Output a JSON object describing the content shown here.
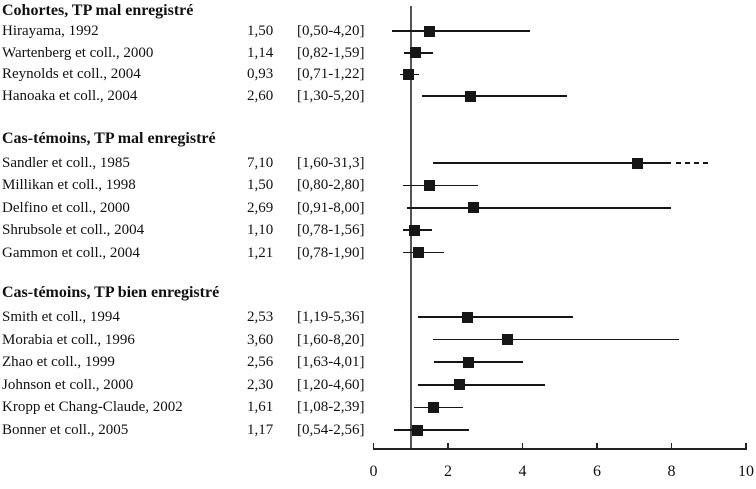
{
  "chart_data": {
    "type": "forest",
    "title": "",
    "x_axis": {
      "min": 0,
      "max": 10,
      "ticks": [
        0,
        2,
        4,
        6,
        8,
        10
      ],
      "tick_labels": [
        "0",
        "2",
        "4",
        "6",
        "8",
        "10"
      ],
      "reference_line_value": 1
    },
    "colors": {
      "marker": "#161616",
      "ci_line": "#161616",
      "reference_line": "#555555",
      "text": "#111111"
    },
    "groups": [
      {
        "label": "Cohortes, TP mal enregistré",
        "studies": [
          {
            "label": "Hirayama, 1992",
            "estimate_text": "1,50",
            "ci_text": "[0,50-4,20]",
            "estimate": 1.5,
            "ci_low": 0.5,
            "ci_high": 4.2
          },
          {
            "label": "Wartenberg et coll., 2000",
            "estimate_text": "1,14",
            "ci_text": "[0,82-1,59]",
            "estimate": 1.14,
            "ci_low": 0.82,
            "ci_high": 1.59
          },
          {
            "label": "Reynolds et coll., 2004",
            "estimate_text": "0,93",
            "ci_text": "[0,71-1,22]",
            "estimate": 0.93,
            "ci_low": 0.71,
            "ci_high": 1.22
          },
          {
            "label": "Hanoaka et coll., 2004",
            "estimate_text": "2,60",
            "ci_text": "[1,30-5,20]",
            "estimate": 2.6,
            "ci_low": 1.3,
            "ci_high": 5.2
          }
        ]
      },
      {
        "label": "Cas-témoins, TP mal enregistré",
        "studies": [
          {
            "label": "Sandler et coll., 1985",
            "estimate_text": "7,10",
            "ci_text": "[1,60-31,3]",
            "estimate": 7.1,
            "ci_low": 1.6,
            "ci_high": 31.3,
            "ci_clipped": true,
            "solid_end": 8.0,
            "dash_end": 9.0
          },
          {
            "label": "Millikan et coll., 1998",
            "estimate_text": "1,50",
            "ci_text": "[0,80-2,80]",
            "estimate": 1.5,
            "ci_low": 0.8,
            "ci_high": 2.8
          },
          {
            "label": "Delfino et coll., 2000",
            "estimate_text": "2,69",
            "ci_text": "[0,91-8,00]",
            "estimate": 2.69,
            "ci_low": 0.91,
            "ci_high": 8.0
          },
          {
            "label": "Shrubsole et coll., 2004",
            "estimate_text": "1,10",
            "ci_text": "[0,78-1,56]",
            "estimate": 1.1,
            "ci_low": 0.78,
            "ci_high": 1.56
          },
          {
            "label": "Gammon et coll., 2004",
            "estimate_text": "1,21",
            "ci_text": "[0,78-1,90]",
            "estimate": 1.21,
            "ci_low": 0.78,
            "ci_high": 1.9
          }
        ]
      },
      {
        "label": "Cas-témoins, TP bien enregistré",
        "studies": [
          {
            "label": "Smith et coll., 1994",
            "estimate_text": "2,53",
            "ci_text": "[1,19-5,36]",
            "estimate": 2.53,
            "ci_low": 1.19,
            "ci_high": 5.36
          },
          {
            "label": "Morabia et coll., 1996",
            "estimate_text": "3,60",
            "ci_text": "[1,60-8,20]",
            "estimate": 3.6,
            "ci_low": 1.6,
            "ci_high": 8.2
          },
          {
            "label": "Zhao et coll., 1999",
            "estimate_text": "2,56",
            "ci_text": "[1,63-4,01]",
            "estimate": 2.56,
            "ci_low": 1.63,
            "ci_high": 4.01
          },
          {
            "label": "Johnson et coll., 2000",
            "estimate_text": "2,30",
            "ci_text": "[1,20-4,60]",
            "estimate": 2.3,
            "ci_low": 1.2,
            "ci_high": 4.6
          },
          {
            "label": "Kropp et Chang-Claude, 2002",
            "estimate_text": "1,61",
            "ci_text": "[1,08-2,39]",
            "estimate": 1.61,
            "ci_low": 1.08,
            "ci_high": 2.39
          },
          {
            "label": "Bonner et coll., 2005",
            "estimate_text": "1,17",
            "ci_text": "[0,54-2,56]",
            "estimate": 1.17,
            "ci_low": 0.54,
            "ci_high": 2.56
          }
        ]
      }
    ]
  }
}
